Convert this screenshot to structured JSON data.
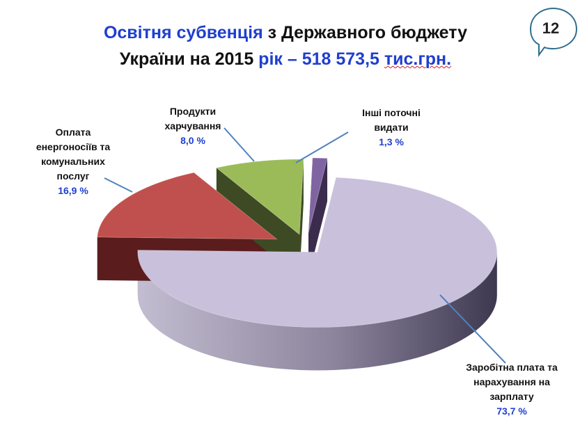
{
  "title": {
    "part1": "Освітня субвенція",
    "part2": " з Державного бюджету",
    "part3": "України на 2015 ",
    "part4": "рік – 518 573,5 ",
    "part5": "тис.грн."
  },
  "slide_number": "12",
  "chart_data": {
    "type": "pie",
    "title": "Освітня субвенція з Державного бюджету України на 2015 рік – 518 573,5 тис.грн.",
    "unit": "%",
    "slices": [
      {
        "key": "salary",
        "label": "Заробітна плата та нарахування на зарплату",
        "label_lines": [
          "Заробітна плата та",
          "нарахування на",
          "зарплату"
        ],
        "value": 73.7,
        "value_label": "73,7 %",
        "color": "#c9c0dc",
        "side_color": "#57506a"
      },
      {
        "key": "utilities",
        "label": "Оплата енергоносіїв та комунальних послуг",
        "label_lines": [
          "Оплата",
          "енергоносіїв та",
          "комунальних",
          "послуг"
        ],
        "value": 16.9,
        "value_label": "16,9 %",
        "color": "#c0504d",
        "side_color": "#5a1c1c"
      },
      {
        "key": "food",
        "label": "Продукти харчування",
        "label_lines": [
          "Продукти",
          "харчування"
        ],
        "value": 8.0,
        "value_label": "8,0 %",
        "color": "#9bbb59",
        "side_color": "#3d4a24"
      },
      {
        "key": "other",
        "label": "Інші поточні видати",
        "label_lines": [
          "Інші поточні",
          "видати"
        ],
        "value": 1.3,
        "value_label": "1,3 %",
        "color": "#8064a2",
        "side_color": "#3b2c4e"
      }
    ]
  }
}
